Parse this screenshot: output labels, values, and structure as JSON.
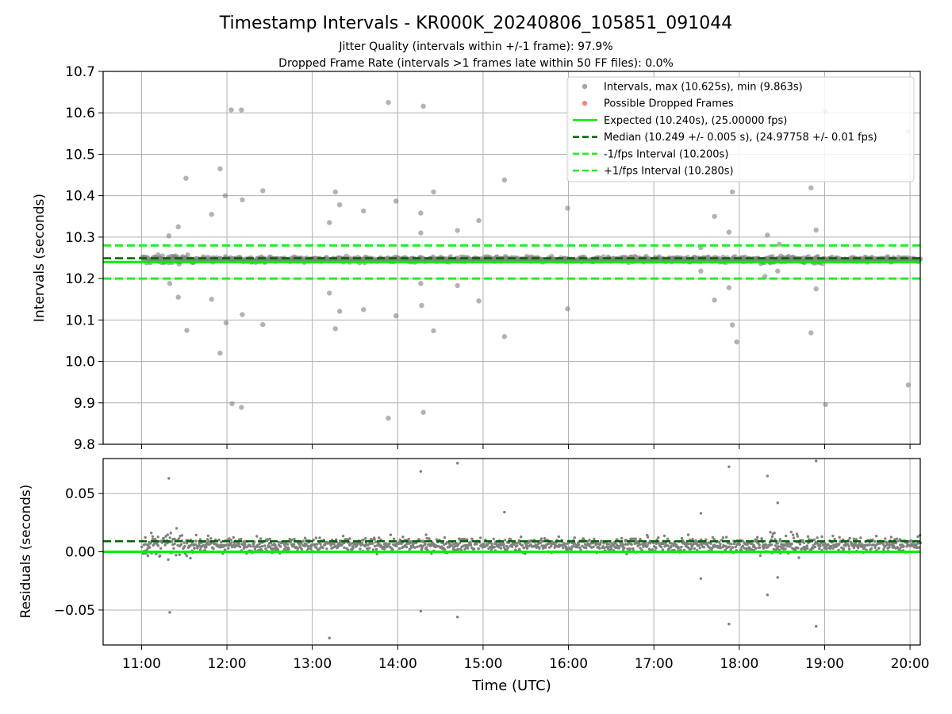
{
  "title": "Timestamp Intervals - KR000K_20240806_105851_091044",
  "subtitle_1": "Jitter Quality (intervals within +/-1 frame): 97.9%",
  "subtitle_2": "Dropped Frame Rate (intervals >1 frames late within 50 FF files): 0.0%",
  "colors": {
    "intervals": "#808080",
    "dropped": "#ff4d4d",
    "expected": "#00ee00",
    "median": "#006400",
    "fps_bounds": "#22ee22",
    "grid": "#b0b0b0"
  },
  "chart_data": [
    {
      "type": "scatter",
      "ylabel": "Intervals (seconds)",
      "xlabel": "",
      "ylim": [
        9.8,
        10.7
      ],
      "xlim_hours": [
        10.55,
        20.12
      ],
      "grid": true,
      "legend_position": "top-right",
      "y_ticks": [
        "9.8",
        "9.9",
        "10.0",
        "10.1",
        "10.2",
        "10.3",
        "10.4",
        "10.5",
        "10.6",
        "10.7"
      ],
      "y_tick_values": [
        9.8,
        9.9,
        10.0,
        10.1,
        10.2,
        10.3,
        10.4,
        10.5,
        10.6,
        10.7
      ],
      "legend": [
        "Intervals, max (10.625s), min (9.863s)",
        "Possible Dropped Frames",
        "Expected (10.240s), (25.00000 fps)",
        "Median (10.249 +/- 0.005 s), (24.97758 +/- 0.01 fps)",
        "-1/fps Interval (10.200s)",
        "+1/fps Interval (10.280s)"
      ],
      "reference_lines": {
        "expected": 10.24,
        "median": 10.249,
        "minus_1fps": 10.2,
        "plus_1fps": 10.28
      },
      "dense_band": {
        "center": 10.246,
        "spread": 0.012,
        "x_start_hours": 11.0,
        "x_end_hours": 20.12
      },
      "outliers": [
        {
          "x": 11.32,
          "y": 10.303
        },
        {
          "x": 11.43,
          "y": 10.325
        },
        {
          "x": 11.52,
          "y": 10.442
        },
        {
          "x": 11.33,
          "y": 10.188
        },
        {
          "x": 11.43,
          "y": 10.155
        },
        {
          "x": 11.53,
          "y": 10.075
        },
        {
          "x": 11.82,
          "y": 10.355
        },
        {
          "x": 11.82,
          "y": 10.15
        },
        {
          "x": 11.92,
          "y": 10.465
        },
        {
          "x": 11.92,
          "y": 10.02
        },
        {
          "x": 11.98,
          "y": 10.4
        },
        {
          "x": 11.99,
          "y": 10.093
        },
        {
          "x": 12.05,
          "y": 10.607
        },
        {
          "x": 12.17,
          "y": 10.607
        },
        {
          "x": 12.18,
          "y": 10.39
        },
        {
          "x": 12.18,
          "y": 10.113
        },
        {
          "x": 12.06,
          "y": 9.898
        },
        {
          "x": 12.17,
          "y": 9.889
        },
        {
          "x": 12.42,
          "y": 10.412
        },
        {
          "x": 12.42,
          "y": 10.089
        },
        {
          "x": 13.2,
          "y": 10.335
        },
        {
          "x": 13.2,
          "y": 10.165
        },
        {
          "x": 13.27,
          "y": 10.409
        },
        {
          "x": 13.27,
          "y": 10.079
        },
        {
          "x": 13.32,
          "y": 10.378
        },
        {
          "x": 13.32,
          "y": 10.121
        },
        {
          "x": 13.6,
          "y": 10.363
        },
        {
          "x": 13.6,
          "y": 10.125
        },
        {
          "x": 13.89,
          "y": 10.625
        },
        {
          "x": 13.89,
          "y": 9.863
        },
        {
          "x": 13.98,
          "y": 10.387
        },
        {
          "x": 13.98,
          "y": 10.11
        },
        {
          "x": 14.27,
          "y": 10.31
        },
        {
          "x": 14.27,
          "y": 10.358
        },
        {
          "x": 14.27,
          "y": 10.188
        },
        {
          "x": 14.28,
          "y": 10.135
        },
        {
          "x": 14.3,
          "y": 10.616
        },
        {
          "x": 14.3,
          "y": 9.877
        },
        {
          "x": 14.42,
          "y": 10.409
        },
        {
          "x": 14.42,
          "y": 10.074
        },
        {
          "x": 14.7,
          "y": 10.316
        },
        {
          "x": 14.7,
          "y": 10.183
        },
        {
          "x": 14.95,
          "y": 10.34
        },
        {
          "x": 14.95,
          "y": 10.146
        },
        {
          "x": 15.25,
          "y": 10.438
        },
        {
          "x": 15.25,
          "y": 10.06
        },
        {
          "x": 15.99,
          "y": 10.37
        },
        {
          "x": 15.99,
          "y": 10.127
        },
        {
          "x": 17.71,
          "y": 10.35
        },
        {
          "x": 17.71,
          "y": 10.148
        },
        {
          "x": 17.88,
          "y": 10.312
        },
        {
          "x": 17.88,
          "y": 10.178
        },
        {
          "x": 17.92,
          "y": 10.409
        },
        {
          "x": 17.92,
          "y": 10.088
        },
        {
          "x": 17.97,
          "y": 10.047
        },
        {
          "x": 18.33,
          "y": 10.305
        },
        {
          "x": 18.45,
          "y": 10.218
        },
        {
          "x": 18.84,
          "y": 10.419
        },
        {
          "x": 18.84,
          "y": 10.069
        },
        {
          "x": 18.9,
          "y": 10.317
        },
        {
          "x": 18.9,
          "y": 10.175
        },
        {
          "x": 19.01,
          "y": 10.604
        },
        {
          "x": 19.01,
          "y": 9.896
        },
        {
          "x": 19.98,
          "y": 10.555
        },
        {
          "x": 19.98,
          "y": 9.943
        },
        {
          "x": 17.55,
          "y": 10.275
        },
        {
          "x": 17.55,
          "y": 10.218
        },
        {
          "x": 18.47,
          "y": 10.283
        },
        {
          "x": 18.3,
          "y": 10.205
        }
      ]
    },
    {
      "type": "scatter",
      "ylabel": "Residuals (seconds)",
      "xlabel": "Time (UTC)",
      "ylim": [
        -0.08,
        0.08
      ],
      "xlim_hours": [
        10.55,
        20.12
      ],
      "grid": true,
      "y_ticks": [
        "−0.05",
        "0.00",
        "0.05"
      ],
      "y_tick_values": [
        -0.05,
        0.0,
        0.05
      ],
      "x_ticks": [
        "11:00",
        "12:00",
        "13:00",
        "14:00",
        "15:00",
        "16:00",
        "17:00",
        "18:00",
        "19:00",
        "20:00"
      ],
      "x_tick_values": [
        11,
        12,
        13,
        14,
        15,
        16,
        17,
        18,
        19,
        20
      ],
      "reference_lines": {
        "median_residual": 0.009,
        "zero": 0.0
      },
      "dense_band": {
        "center": 0.006,
        "spread": 0.012,
        "x_start_hours": 11.0,
        "x_end_hours": 20.12
      },
      "outliers": [
        {
          "x": 11.32,
          "y": 0.063
        },
        {
          "x": 11.33,
          "y": -0.052
        },
        {
          "x": 14.27,
          "y": 0.069
        },
        {
          "x": 14.27,
          "y": -0.051
        },
        {
          "x": 14.7,
          "y": 0.076
        },
        {
          "x": 14.7,
          "y": -0.056
        },
        {
          "x": 13.2,
          "y": -0.074
        },
        {
          "x": 17.88,
          "y": 0.073
        },
        {
          "x": 17.88,
          "y": -0.062
        },
        {
          "x": 18.33,
          "y": 0.065
        },
        {
          "x": 18.33,
          "y": -0.037
        },
        {
          "x": 18.9,
          "y": 0.078
        },
        {
          "x": 18.9,
          "y": -0.064
        },
        {
          "x": 17.55,
          "y": 0.033
        },
        {
          "x": 17.55,
          "y": -0.023
        },
        {
          "x": 15.25,
          "y": 0.034
        },
        {
          "x": 18.45,
          "y": 0.042
        },
        {
          "x": 18.45,
          "y": -0.022
        }
      ]
    }
  ]
}
